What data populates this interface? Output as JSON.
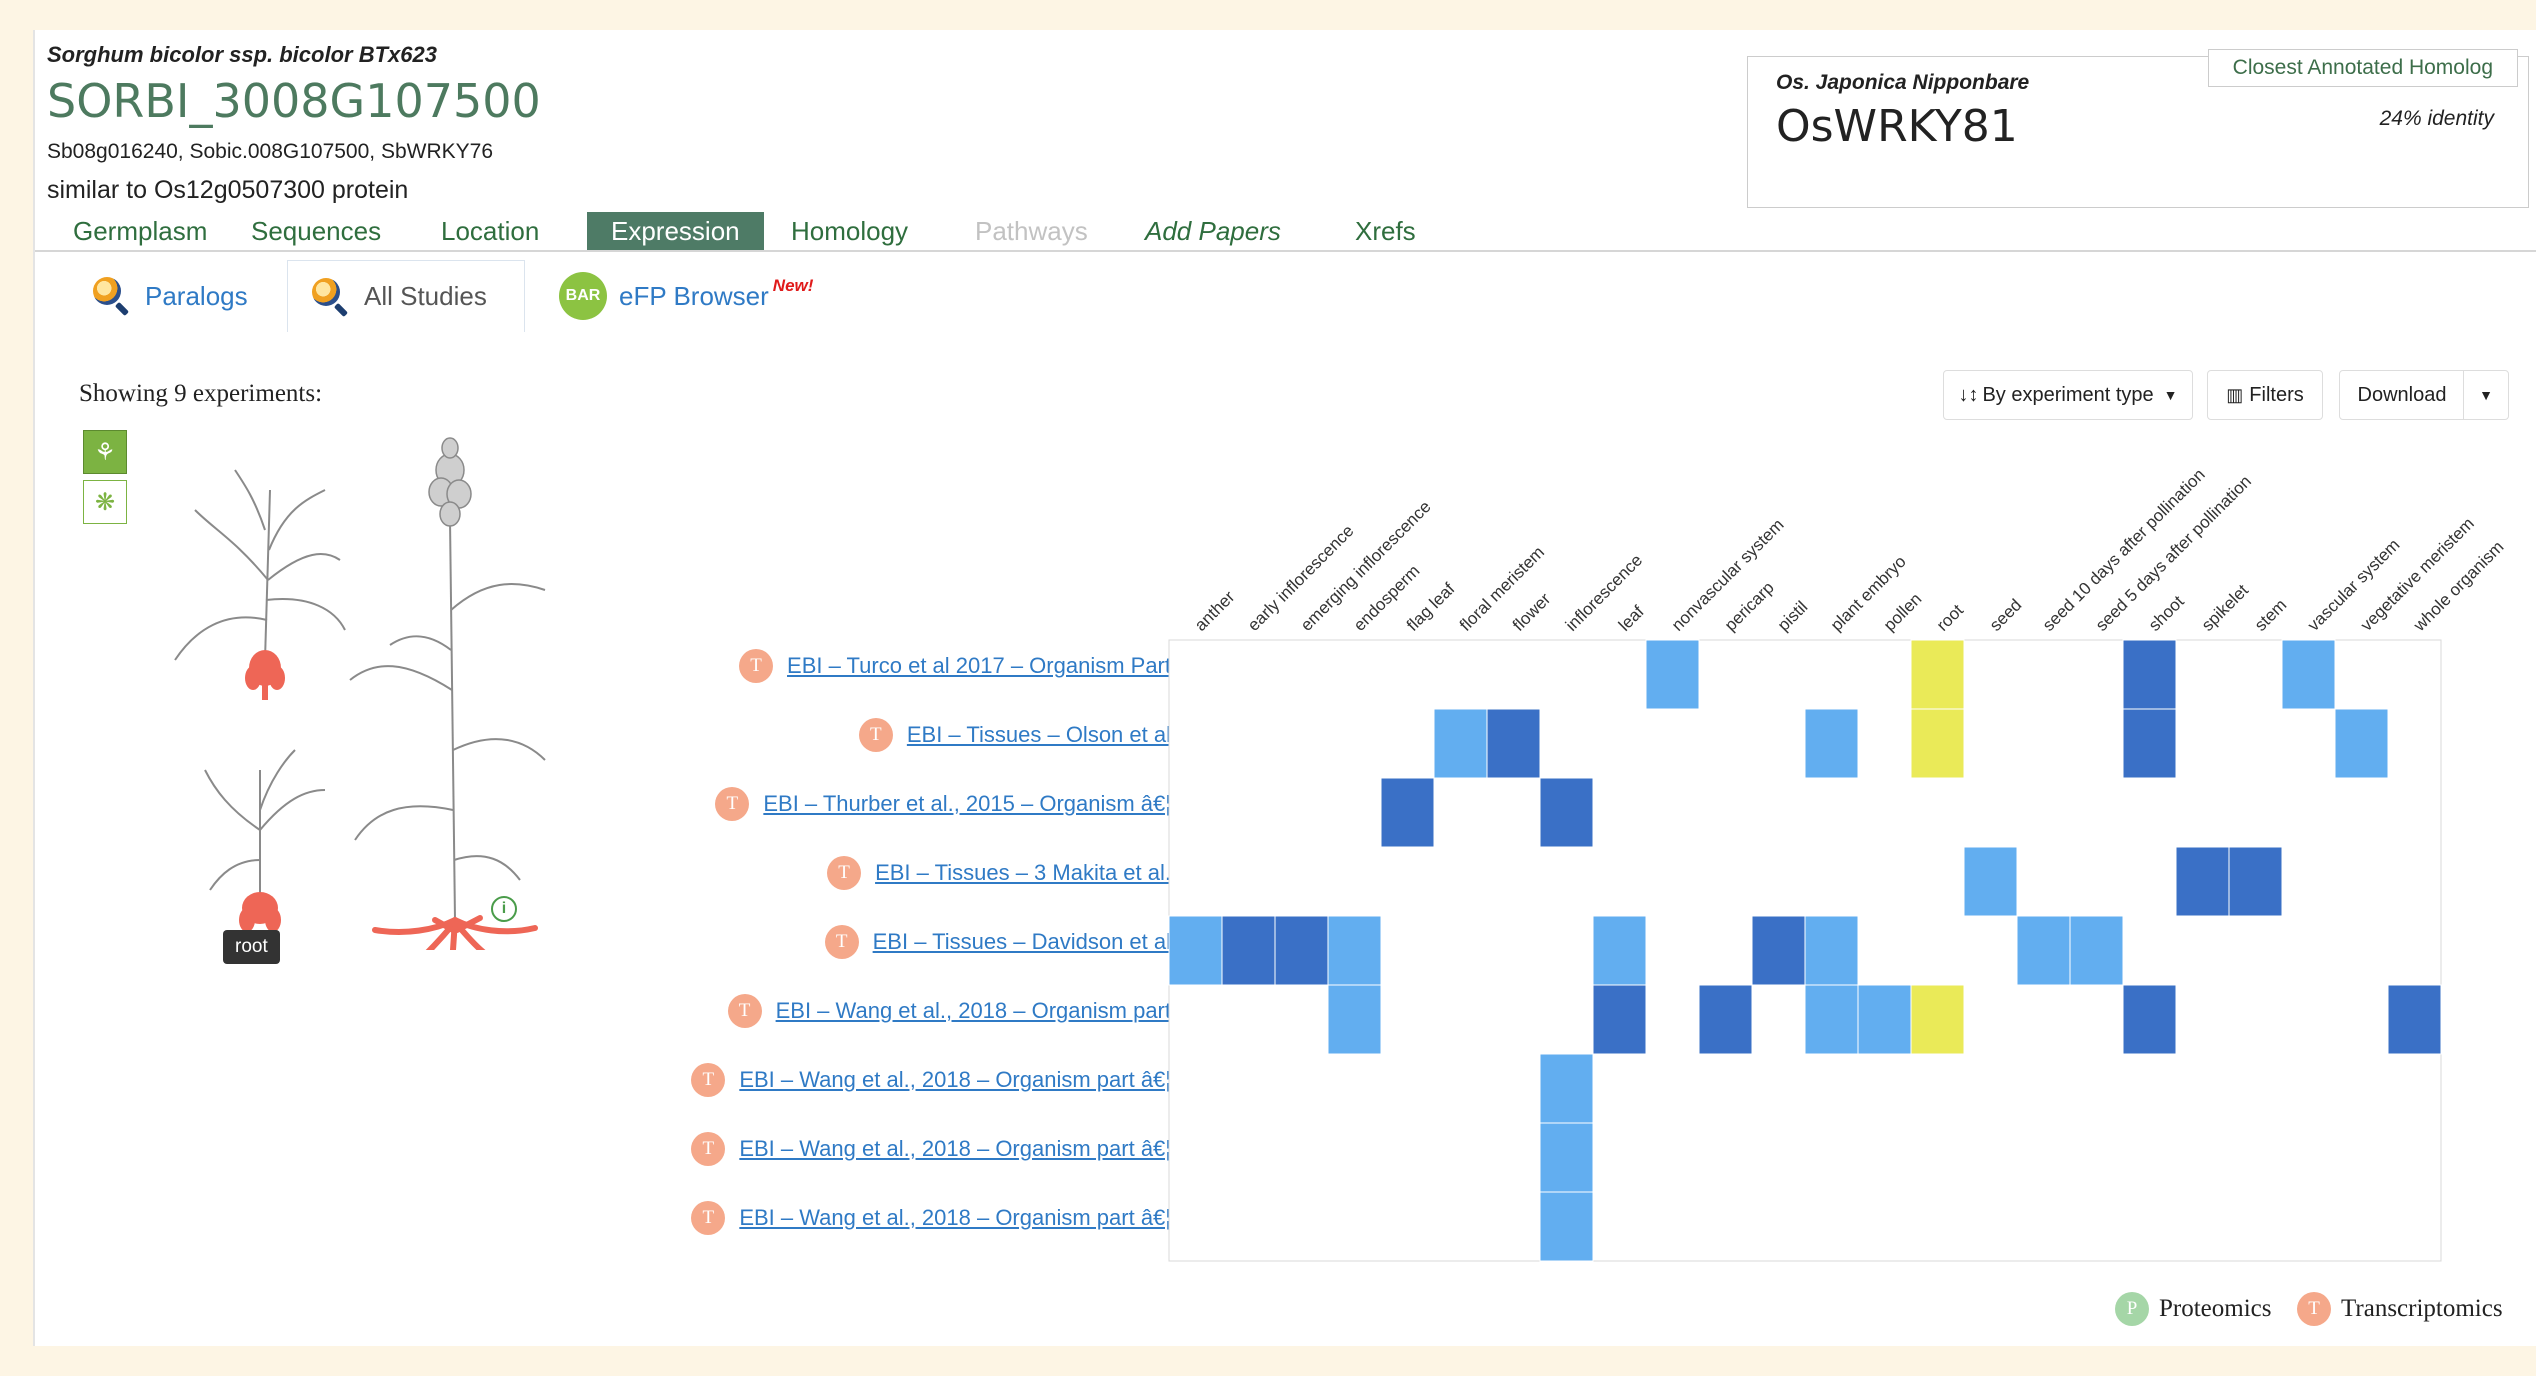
{
  "gene": {
    "species": "Sorghum bicolor ssp. bicolor BTx623",
    "id": "SORBI_3008G107500",
    "synonyms": "Sb08g016240, Sobic.008G107500, SbWRKY76",
    "description": "similar to Os12g0507300 protein"
  },
  "homolog": {
    "tab_label": "Closest Annotated Homolog",
    "species": "Os. Japonica Nipponbare",
    "gene": "OsWRKY81",
    "identity": "24% identity"
  },
  "nav": {
    "items": [
      {
        "label": "Germplasm",
        "state": "normal"
      },
      {
        "label": "Sequences",
        "state": "normal"
      },
      {
        "label": "Location",
        "state": "normal"
      },
      {
        "label": "Expression",
        "state": "active"
      },
      {
        "label": "Homology",
        "state": "normal"
      },
      {
        "label": "Pathways",
        "state": "disabled"
      },
      {
        "label": "Add Papers",
        "state": "italic"
      },
      {
        "label": "Xrefs",
        "state": "normal"
      }
    ]
  },
  "subtabs": {
    "paralogs": "Paralogs",
    "all_studies": "All Studies",
    "efp_badge": "BAR",
    "efp_browser": "eFP Browser",
    "new_badge": "New!"
  },
  "showing_label": "Showing 9 experiments:",
  "toolbar": {
    "sort_label": "By experiment type",
    "filters_label": "Filters",
    "download_label": "Download"
  },
  "tooltip": "root",
  "icons": {
    "plant_view": "plant-view-icon",
    "cell_view": "cell-view-icon",
    "info": "info-icon",
    "sort": "sort-icon",
    "filter": "filter-icon",
    "caret": "caret-down-icon",
    "search": "magnifier-icon"
  },
  "colors": {
    "accent_green": "#4e7b66",
    "link_blue": "#2f7ac5",
    "cell_light": "#62aef0",
    "cell_dark": "#3a70c6",
    "cell_yellow": "#eaea58",
    "transcriptomics": "#f5a88a",
    "proteomics": "#a5d6a7",
    "plant_highlight": "#ee6656"
  },
  "experiments": [
    {
      "badge": "T",
      "label": "EBI – Turco et al 2017 – Organism Part"
    },
    {
      "badge": "T",
      "label": "EBI – Tissues – Olson et al"
    },
    {
      "badge": "T",
      "label": "EBI – Thurber et al., 2015 – Organism â€¦"
    },
    {
      "badge": "T",
      "label": "EBI – Tissues – 3 Makita et al."
    },
    {
      "badge": "T",
      "label": "EBI – Tissues – Davidson et al"
    },
    {
      "badge": "T",
      "label": "EBI – Wang et al., 2018 – Organism part"
    },
    {
      "badge": "T",
      "label": "EBI – Wang et al., 2018 – Organism part â€¦"
    },
    {
      "badge": "T",
      "label": "EBI – Wang et al., 2018 – Organism part â€¦"
    },
    {
      "badge": "T",
      "label": "EBI – Wang et al., 2018 – Organism part â€¦"
    }
  ],
  "tissues": [
    "anther",
    "early inflorescence",
    "emerging inflorescence",
    "endosperm",
    "flag leaf",
    "floral meristem",
    "flower",
    "inflorescence",
    "leaf",
    "nonvascular system",
    "pericarp",
    "pistil",
    "plant embryo",
    "pollen",
    "root",
    "seed",
    "seed 10 days after pollination",
    "seed 5 days after pollination",
    "shoot",
    "spikelet",
    "stem",
    "vascular system",
    "vegetative meristem",
    "whole organism"
  ],
  "heatmap_cells": [
    {
      "row": 0,
      "col": 9,
      "level": "light"
    },
    {
      "row": 0,
      "col": 14,
      "level": "yellow"
    },
    {
      "row": 0,
      "col": 18,
      "level": "dark"
    },
    {
      "row": 0,
      "col": 21,
      "level": "light"
    },
    {
      "row": 1,
      "col": 5,
      "level": "light"
    },
    {
      "row": 1,
      "col": 6,
      "level": "dark"
    },
    {
      "row": 1,
      "col": 12,
      "level": "light"
    },
    {
      "row": 1,
      "col": 14,
      "level": "yellow"
    },
    {
      "row": 1,
      "col": 18,
      "level": "dark"
    },
    {
      "row": 1,
      "col": 22,
      "level": "light"
    },
    {
      "row": 2,
      "col": 4,
      "level": "dark"
    },
    {
      "row": 2,
      "col": 7,
      "level": "dark"
    },
    {
      "row": 3,
      "col": 15,
      "level": "light"
    },
    {
      "row": 3,
      "col": 19,
      "level": "dark"
    },
    {
      "row": 3,
      "col": 20,
      "level": "dark"
    },
    {
      "row": 4,
      "col": 0,
      "level": "light"
    },
    {
      "row": 4,
      "col": 1,
      "level": "dark"
    },
    {
      "row": 4,
      "col": 2,
      "level": "dark"
    },
    {
      "row": 4,
      "col": 3,
      "level": "light"
    },
    {
      "row": 4,
      "col": 8,
      "level": "light"
    },
    {
      "row": 4,
      "col": 11,
      "level": "dark"
    },
    {
      "row": 4,
      "col": 12,
      "level": "light"
    },
    {
      "row": 4,
      "col": 16,
      "level": "light"
    },
    {
      "row": 4,
      "col": 17,
      "level": "light"
    },
    {
      "row": 5,
      "col": 3,
      "level": "light"
    },
    {
      "row": 5,
      "col": 8,
      "level": "dark"
    },
    {
      "row": 5,
      "col": 10,
      "level": "dark"
    },
    {
      "row": 5,
      "col": 12,
      "level": "light"
    },
    {
      "row": 5,
      "col": 13,
      "level": "light"
    },
    {
      "row": 5,
      "col": 14,
      "level": "yellow"
    },
    {
      "row": 5,
      "col": 18,
      "level": "dark"
    },
    {
      "row": 5,
      "col": 23,
      "level": "dark"
    },
    {
      "row": 6,
      "col": 7,
      "level": "light"
    },
    {
      "row": 7,
      "col": 7,
      "level": "light"
    },
    {
      "row": 8,
      "col": 7,
      "level": "light"
    }
  ],
  "legend": {
    "proteomics_badge": "P",
    "proteomics": "Proteomics",
    "transcriptomics_badge": "T",
    "transcriptomics": "Transcriptomics"
  }
}
